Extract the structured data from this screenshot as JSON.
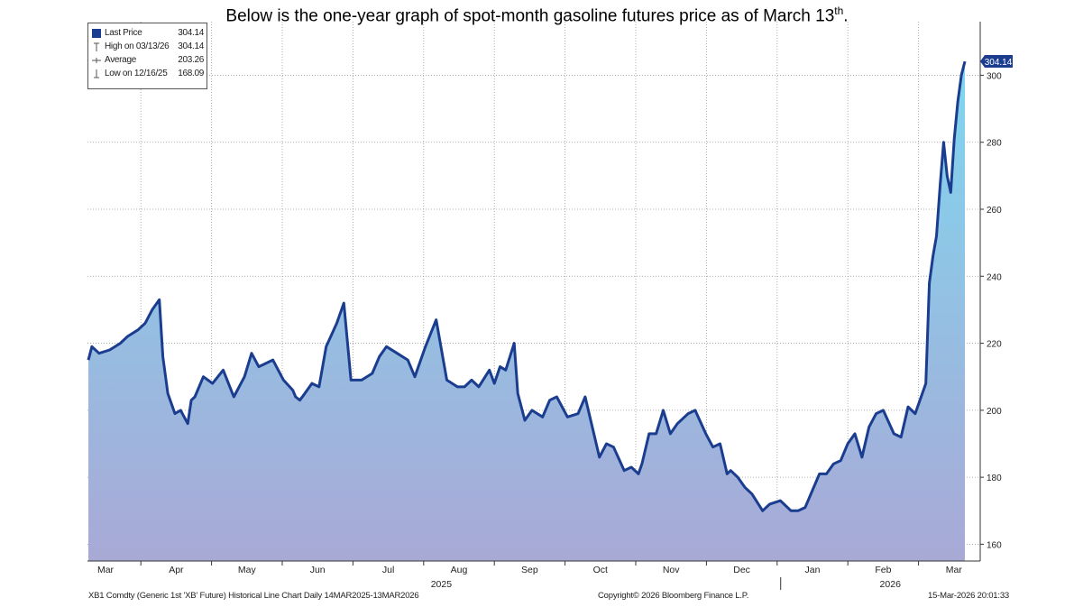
{
  "caption": {
    "text": "Below is the one-year graph of spot-month gasoline futures price as of March 13",
    "superscript": "th",
    "suffix": "."
  },
  "legend": {
    "items": [
      {
        "label": "Last Price",
        "value": "304.14",
        "icon": "filled-square-icon"
      },
      {
        "label": "High on 03/13/26",
        "value": "304.14",
        "icon": "high-marker-icon"
      },
      {
        "label": "Average",
        "value": "203.26",
        "icon": "average-marker-icon"
      },
      {
        "label": "Low on 12/16/25",
        "value": "168.09",
        "icon": "low-marker-icon"
      }
    ]
  },
  "last_price_badge": "304.14",
  "footer": {
    "left": "XB1 Comdty (Generic 1st 'XB' Future) Historical Line Chart Daily 14MAR2025-13MAR2026",
    "center": "Copyright© 2026 Bloomberg Finance L.P.",
    "right": "15-Mar-2026 20:01:33"
  },
  "colors": {
    "line": "#1b3d8f",
    "fill_top": "#7fd6ef",
    "fill_bottom": "#a9a9d6",
    "badge": "#1b3d8f"
  },
  "chart_data": {
    "type": "area",
    "title": "",
    "xlabel": "",
    "ylabel": "",
    "ylim": [
      155,
      316
    ],
    "y_ticks": [
      160,
      180,
      200,
      220,
      240,
      260,
      280,
      300
    ],
    "x_month_labels": [
      "Mar",
      "Apr",
      "May",
      "Jun",
      "Jul",
      "Aug",
      "Sep",
      "Oct",
      "Nov",
      "Dec",
      "Jan",
      "Feb",
      "Mar"
    ],
    "x_year_labels": [
      "2025",
      "2026"
    ],
    "series": [
      {
        "name": "Last Price",
        "x_month_offset": [
          0,
          0.05,
          0.15,
          0.3,
          0.45,
          0.55,
          0.7,
          0.8,
          0.9,
          1.0,
          1.05,
          1.12,
          1.22,
          1.3,
          1.4,
          1.45,
          1.5,
          1.62,
          1.75,
          1.9,
          2.05,
          2.2,
          2.3,
          2.4,
          2.5,
          2.6,
          2.75,
          2.88,
          2.92,
          2.98,
          3.05,
          3.15,
          3.25,
          3.35,
          3.5,
          3.6,
          3.7,
          3.85,
          4.0,
          4.1,
          4.2,
          4.35,
          4.5,
          4.6,
          4.75,
          4.9,
          5.05,
          5.2,
          5.3,
          5.4,
          5.5,
          5.65,
          5.72,
          5.8,
          5.88,
          6.0,
          6.05,
          6.15,
          6.25,
          6.4,
          6.5,
          6.6,
          6.75,
          6.9,
          7.0,
          7.1,
          7.2,
          7.3,
          7.4,
          7.55,
          7.65,
          7.75,
          7.8,
          7.9,
          8.0,
          8.1,
          8.2,
          8.3,
          8.45,
          8.55,
          8.7,
          8.8,
          8.9,
          9.0,
          9.05,
          9.15,
          9.25,
          9.35,
          9.5,
          9.6,
          9.75,
          9.9,
          10.0,
          10.1,
          10.2,
          10.3,
          10.4,
          10.5,
          10.6,
          10.7,
          10.8,
          10.9,
          11.0,
          11.1,
          11.2,
          11.35,
          11.45,
          11.55,
          11.65,
          11.75,
          11.8,
          11.85,
          11.9,
          11.95,
          12.0,
          12.05,
          12.1,
          12.15,
          12.2,
          12.25,
          12.3,
          12.35
        ],
        "values": [
          215,
          219,
          217,
          218,
          220,
          222,
          224,
          226,
          230,
          233,
          216,
          205,
          199,
          200,
          196,
          203,
          204,
          210,
          208,
          212,
          204,
          210,
          217,
          213,
          214,
          215,
          209,
          206,
          204,
          203,
          205,
          208,
          207,
          219,
          226,
          232,
          209,
          209,
          211,
          216,
          219,
          217,
          215,
          210,
          219,
          227,
          209,
          207,
          207,
          209,
          207,
          212,
          208,
          213,
          212,
          220,
          205,
          197,
          200,
          198,
          203,
          204,
          198,
          199,
          204,
          195,
          186,
          190,
          189,
          182,
          183,
          181,
          184,
          193,
          193,
          200,
          193,
          196,
          199,
          200,
          193,
          189,
          190,
          181,
          182,
          180,
          177,
          175,
          170,
          172,
          173,
          170,
          170,
          171,
          176,
          181,
          181,
          184,
          185,
          190,
          193,
          186,
          195,
          199,
          200,
          193,
          192,
          201,
          199,
          205,
          208,
          238,
          246,
          252,
          267,
          280,
          270,
          265,
          281,
          292,
          300,
          304.14
        ]
      }
    ]
  }
}
